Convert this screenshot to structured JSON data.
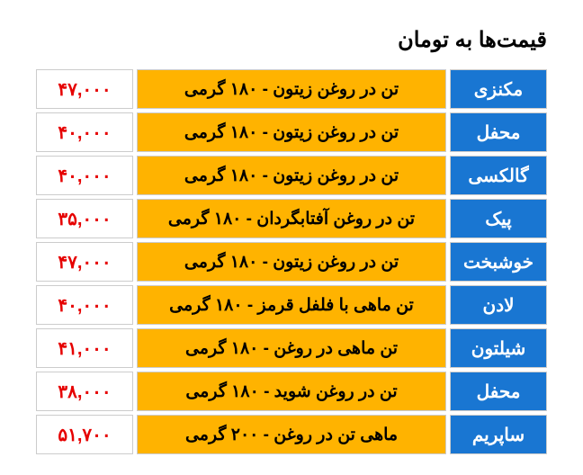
{
  "title": "قیمت‌ها به تومان",
  "colors": {
    "brand_bg": "#1976d2",
    "brand_text": "#ffffff",
    "product_bg": "#ffb300",
    "product_text": "#000000",
    "price_bg": "#ffffff",
    "price_text": "#e60000",
    "border": "#cccccc"
  },
  "rows": [
    {
      "brand": "مکنزی",
      "product": "تن در روغن زیتون - ۱۸۰ گرمی",
      "price": "۴۷,۰۰۰"
    },
    {
      "brand": "محفل",
      "product": "تن در روغن زیتون - ۱۸۰ گرمی",
      "price": "۴۰,۰۰۰"
    },
    {
      "brand": "گالکسی",
      "product": "تن در روغن زیتون - ۱۸۰ گرمی",
      "price": "۴۰,۰۰۰"
    },
    {
      "brand": "پیک",
      "product": "تن در روغن آفتابگردان - ۱۸۰ گرمی",
      "price": "۳۵,۰۰۰"
    },
    {
      "brand": "خوشبخت",
      "product": "تن در روغن زیتون - ۱۸۰ گرمی",
      "price": "۴۷,۰۰۰"
    },
    {
      "brand": "لادن",
      "product": "تن ماهی با فلفل قرمز - ۱۸۰ گرمی",
      "price": "۴۰,۰۰۰"
    },
    {
      "brand": "شیلتون",
      "product": "تن ماهی در روغن - ۱۸۰ گرمی",
      "price": "۴۱,۰۰۰"
    },
    {
      "brand": "محفل",
      "product": "تن در روغن شوید - ۱۸۰ گرمی",
      "price": "۳۸,۰۰۰"
    },
    {
      "brand": "ساپریم",
      "product": "ماهی تن در روغن - ۲۰۰ گرمی",
      "price": "۵۱,۷۰۰"
    }
  ]
}
